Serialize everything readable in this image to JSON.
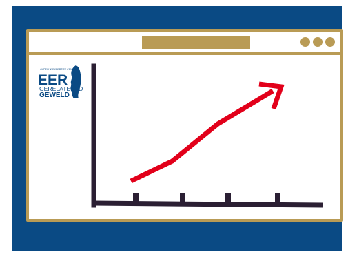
{
  "colors": {
    "panel_background": "#0a4a84",
    "window_border": "#b99b55",
    "window_background": "#ffffff",
    "axis": "#2b1f33",
    "trend_arrow": "#e2001a",
    "logo_blue": "#0a4a84"
  },
  "window": {
    "dots": [
      "window-dot",
      "window-dot",
      "window-dot"
    ]
  },
  "logo": {
    "tagline": "LANDELIJK EXPERTISE CENTRUM",
    "line1": "EER",
    "line2": "GERELATEERD",
    "line3": "GEWELD"
  },
  "trend": {
    "direction": "upward",
    "icon": "trend-up-arrow-icon"
  }
}
